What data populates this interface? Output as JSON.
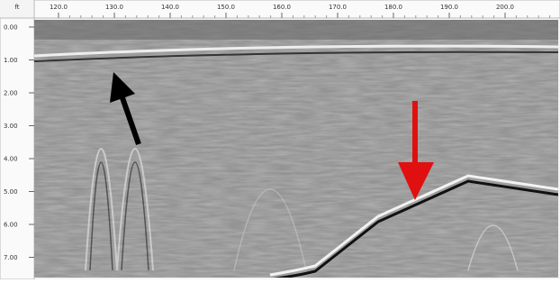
{
  "top_axis": {
    "corner": "ft",
    "labels": [
      "120.0",
      "130.0",
      "140.0",
      "150.0",
      "160.0",
      "170.0",
      "180.0",
      "190.0",
      "200.0"
    ]
  },
  "left_axis": {
    "labels": [
      "0.00",
      "1.00",
      "2.00",
      "3.00",
      "4.00",
      "5.00",
      "6.00",
      "7.00"
    ]
  }
}
